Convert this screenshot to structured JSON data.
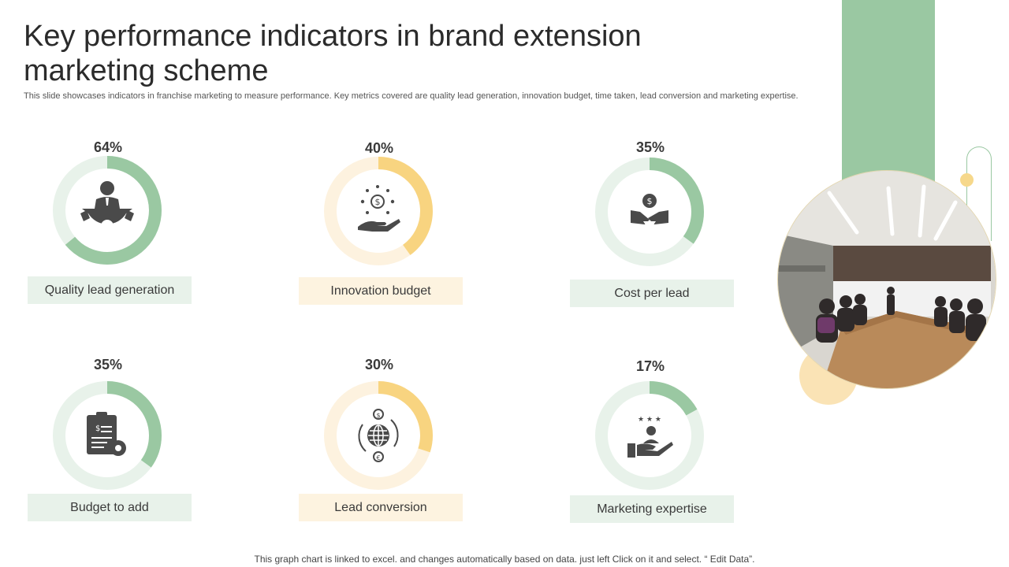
{
  "slide": {
    "title": "Key performance indicators in brand extension marketing scheme",
    "subtitle": "This slide showcases indicators in franchise marketing to measure performance. Key metrics covered are quality lead generation, innovation budget, time taken, lead conversion and marketing expertise.",
    "footer": "This graph chart is linked to excel. and changes automatically based on data. just left Click on it and select. “ Edit Data”.",
    "photo_icon": "meeting-room-photo"
  },
  "colors": {
    "green": "#9ac8a2",
    "green_track": "#e8f2ea",
    "yellow": "#f8d480",
    "yellow_track": "#fdf2df",
    "icon": "#4a4a4a"
  },
  "chart_data": [
    {
      "type": "pie",
      "title": "",
      "values": [
        64,
        36
      ],
      "percent_label": "64%",
      "label": "Quality  lead generation",
      "icon": "businessman-gear-icon",
      "theme": "green"
    },
    {
      "type": "pie",
      "title": "",
      "values": [
        40,
        60
      ],
      "percent_label": "40%",
      "label": "Innovation  budget",
      "icon": "money-hand-icon",
      "theme": "yellow"
    },
    {
      "type": "pie",
      "title": "",
      "values": [
        35,
        65
      ],
      "percent_label": "35%",
      "label": "Cost per lead",
      "icon": "handshake-dollar-icon",
      "theme": "green"
    },
    {
      "type": "pie",
      "title": "",
      "values": [
        35,
        65
      ],
      "percent_label": "35%",
      "label": "Budget to add",
      "icon": "invoice-gear-icon",
      "theme": "green"
    },
    {
      "type": "pie",
      "title": "",
      "values": [
        30,
        70
      ],
      "percent_label": "30%",
      "label": "Lead conversion",
      "icon": "globe-currency-icon",
      "theme": "yellow"
    },
    {
      "type": "pie",
      "title": "",
      "values": [
        17,
        83
      ],
      "percent_label": "17%",
      "label": "Marketing expertise",
      "icon": "expert-hand-stars-icon",
      "theme": "green"
    }
  ]
}
